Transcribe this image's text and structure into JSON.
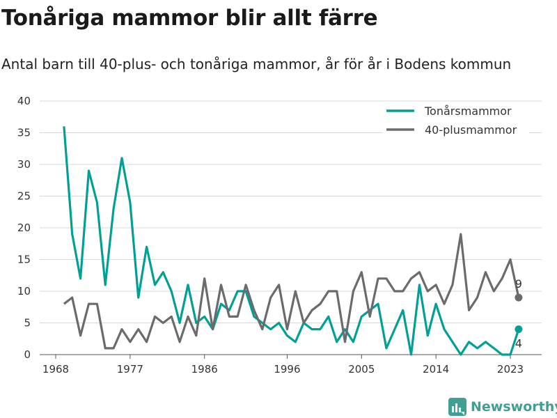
{
  "title": "Tonåriga mammor blir allt färre",
  "subtitle": "Antal barn till 40-plus- och tonåriga mammor, år för år i Bodens kommun",
  "brand": {
    "name": "Newsworthy",
    "icon": "newsworthy-logo-icon"
  },
  "colors": {
    "teen": "#00a096",
    "forty": "#6b6b6d",
    "grid": "#d9d9d9",
    "axis": "#555555"
  },
  "chart_data": {
    "type": "line",
    "title": "Tonåriga mammor blir allt färre",
    "subtitle": "Antal barn till 40-plus- och tonåriga mammor, år för år i Bodens kommun",
    "xlabel": "",
    "ylabel": "",
    "xlim": [
      1968,
      2024
    ],
    "ylim": [
      0,
      40
    ],
    "x_ticks": [
      "1968",
      "1977",
      "1986",
      "1996",
      "2005",
      "2014",
      "2023"
    ],
    "y_ticks": [
      "0",
      "5",
      "10",
      "15",
      "20",
      "25",
      "30",
      "35",
      "40"
    ],
    "grid": "horizontal",
    "legend_position": "top-right",
    "x": [
      1969,
      1970,
      1971,
      1972,
      1973,
      1974,
      1975,
      1976,
      1977,
      1978,
      1979,
      1980,
      1981,
      1982,
      1983,
      1984,
      1985,
      1986,
      1987,
      1988,
      1989,
      1990,
      1991,
      1992,
      1993,
      1994,
      1995,
      1996,
      1997,
      1998,
      1999,
      2000,
      2001,
      2002,
      2003,
      2004,
      2005,
      2006,
      2007,
      2008,
      2009,
      2010,
      2011,
      2012,
      2013,
      2014,
      2015,
      2016,
      2017,
      2018,
      2019,
      2020,
      2021,
      2022,
      2023,
      2024
    ],
    "series": [
      {
        "name": "Tonårsmammor",
        "color": "#00a096",
        "values": [
          36,
          19,
          12,
          29,
          24,
          11,
          23,
          31,
          24,
          9,
          17,
          11,
          13,
          10,
          5,
          11,
          5,
          6,
          4,
          8,
          7,
          10,
          10,
          6,
          5,
          4,
          5,
          3,
          2,
          5,
          4,
          4,
          6,
          2,
          4,
          2,
          6,
          7,
          8,
          1,
          4,
          7,
          0,
          11,
          3,
          8,
          4,
          2,
          0,
          2,
          1,
          2,
          1,
          0,
          0,
          4
        ],
        "end_label": "4"
      },
      {
        "name": "40-plusmammor",
        "color": "#6b6b6d",
        "values": [
          8,
          9,
          3,
          8,
          8,
          1,
          1,
          4,
          2,
          4,
          2,
          6,
          5,
          6,
          2,
          6,
          3,
          12,
          4,
          11,
          6,
          6,
          11,
          7,
          4,
          9,
          11,
          4,
          10,
          5,
          7,
          8,
          10,
          10,
          2,
          10,
          13,
          6,
          12,
          12,
          10,
          10,
          12,
          13,
          10,
          11,
          8,
          11,
          19,
          7,
          9,
          13,
          10,
          12,
          15,
          9
        ],
        "end_label": "9"
      }
    ]
  }
}
